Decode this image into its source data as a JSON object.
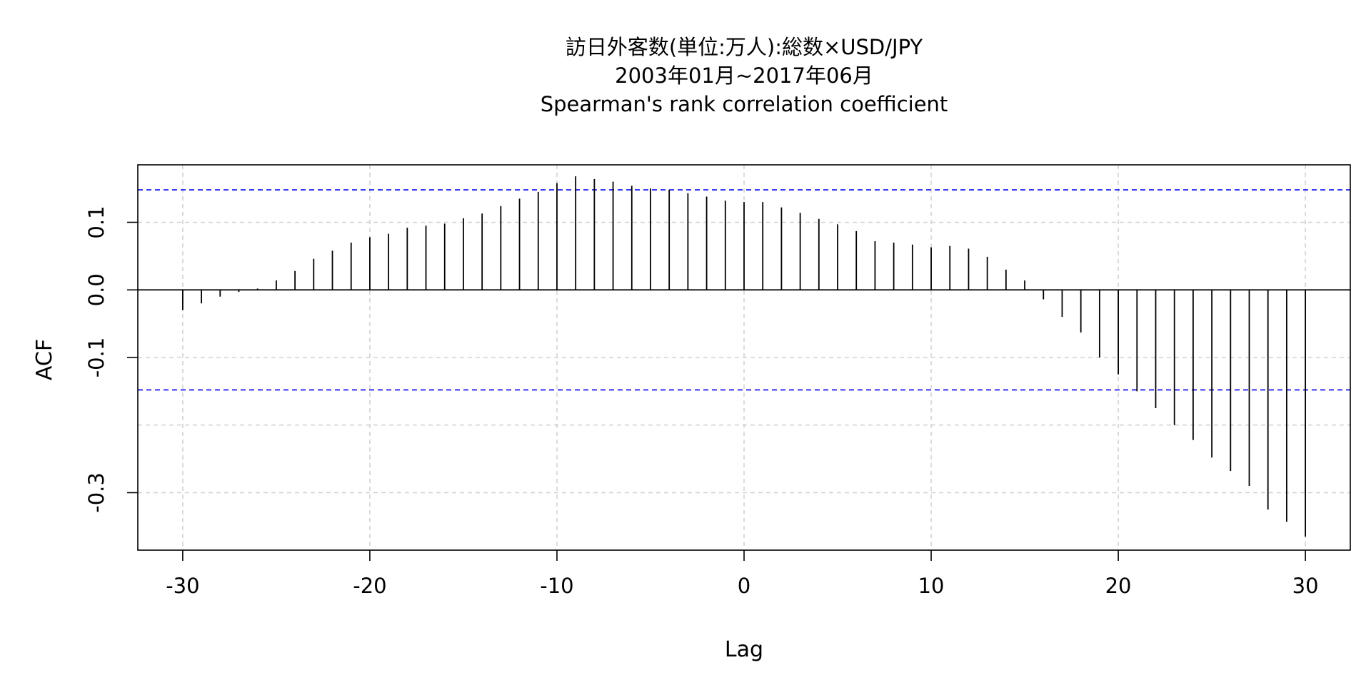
{
  "chart_data": {
    "type": "bar",
    "subtype": "acf-lollipop",
    "title": [
      "訪日外客数(単位:万人):総数×USD/JPY",
      "2003年01月~2017年06月",
      "Spearman's rank correlation coefficient"
    ],
    "xlabel": "Lag",
    "ylabel": "ACF",
    "xlim": [
      -32.4,
      32.4
    ],
    "ylim": [
      -0.385,
      0.185
    ],
    "x_ticks": [
      -30,
      -20,
      -10,
      0,
      10,
      20,
      30
    ],
    "x_tick_labels": [
      "-30",
      "-20",
      "-10",
      "0",
      "10",
      "20",
      "30"
    ],
    "y_ticks": [
      -0.3,
      -0.1,
      0.0,
      0.1
    ],
    "y_tick_labels": [
      "-0.3",
      "-0.1",
      "0.0",
      "0.1"
    ],
    "y_grid": [
      -0.3,
      -0.2,
      -0.1,
      0.0,
      0.1
    ],
    "grid": true,
    "confidence_bounds": [
      0.148,
      -0.148
    ],
    "x": [
      -30,
      -29,
      -28,
      -27,
      -26,
      -25,
      -24,
      -23,
      -22,
      -21,
      -20,
      -19,
      -18,
      -17,
      -16,
      -15,
      -14,
      -13,
      -12,
      -11,
      -10,
      -9,
      -8,
      -7,
      -6,
      -5,
      -4,
      -3,
      -2,
      -1,
      0,
      1,
      2,
      3,
      4,
      5,
      6,
      7,
      8,
      9,
      10,
      11,
      12,
      13,
      14,
      15,
      16,
      17,
      18,
      19,
      20,
      21,
      22,
      23,
      24,
      25,
      26,
      27,
      28,
      29,
      30
    ],
    "values": [
      -0.03,
      -0.02,
      -0.01,
      -0.003,
      0.002,
      0.014,
      0.028,
      0.046,
      0.058,
      0.07,
      0.078,
      0.083,
      0.092,
      0.095,
      0.098,
      0.106,
      0.113,
      0.124,
      0.135,
      0.145,
      0.158,
      0.168,
      0.164,
      0.16,
      0.154,
      0.15,
      0.148,
      0.143,
      0.138,
      0.132,
      0.13,
      0.13,
      0.122,
      0.114,
      0.105,
      0.097,
      0.087,
      0.072,
      0.07,
      0.067,
      0.063,
      0.065,
      0.061,
      0.049,
      0.03,
      0.014,
      -0.014,
      -0.04,
      -0.063,
      -0.1,
      -0.125,
      -0.15,
      -0.175,
      -0.2,
      -0.222,
      -0.248,
      -0.268,
      -0.29,
      -0.325,
      -0.343,
      -0.365
    ]
  },
  "colors": {
    "bar": "#000000",
    "confidence": "#0000ee",
    "grid": "#d3d3d3",
    "axis": "#000000"
  }
}
